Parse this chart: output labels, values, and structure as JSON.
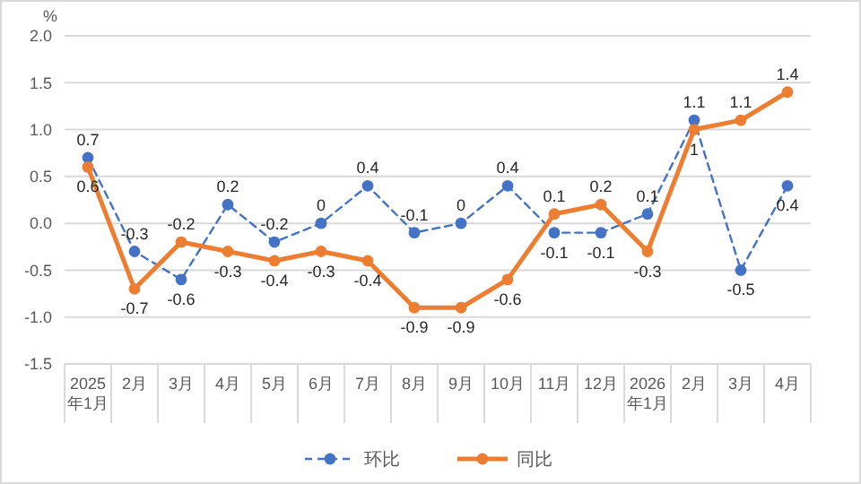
{
  "chart_data": {
    "type": "line",
    "ylabel": "%",
    "categories": [
      "2025年1月",
      "2月",
      "3月",
      "4月",
      "5月",
      "6月",
      "7月",
      "8月",
      "9月",
      "10月",
      "11月",
      "12月",
      "2026年1月",
      "2月",
      "3月",
      "4月"
    ],
    "series": [
      {
        "name": "环比",
        "color": "#4472c4",
        "line_style": "dashed",
        "marker": "circle",
        "values": [
          0.7,
          -0.3,
          -0.6,
          0.2,
          -0.2,
          0,
          0.4,
          -0.1,
          0,
          0.4,
          -0.1,
          -0.1,
          0.1,
          1.1,
          -0.5,
          0.4
        ]
      },
      {
        "name": "同比",
        "color": "#ed7d31",
        "line_style": "solid",
        "marker": "circle",
        "values": [
          0.6,
          -0.7,
          -0.2,
          -0.3,
          -0.4,
          -0.3,
          -0.4,
          -0.9,
          -0.9,
          -0.6,
          0.1,
          0.2,
          -0.3,
          1,
          1.1,
          1.4
        ]
      }
    ],
    "ylim": [
      -1.5,
      2
    ],
    "yticks": [
      {
        "value": -1.5,
        "label": "-1.5"
      },
      {
        "value": -1,
        "label": "-1.0"
      },
      {
        "value": -0.5,
        "label": "-0.5"
      },
      {
        "value": 0,
        "label": "0.0"
      },
      {
        "value": 0.5,
        "label": "0.5"
      },
      {
        "value": 1,
        "label": "1.0"
      },
      {
        "value": 1.5,
        "label": "1.5"
      },
      {
        "value": 2,
        "label": "2.0"
      }
    ],
    "grid": "y",
    "legend": "bottom",
    "data_labels": true
  }
}
